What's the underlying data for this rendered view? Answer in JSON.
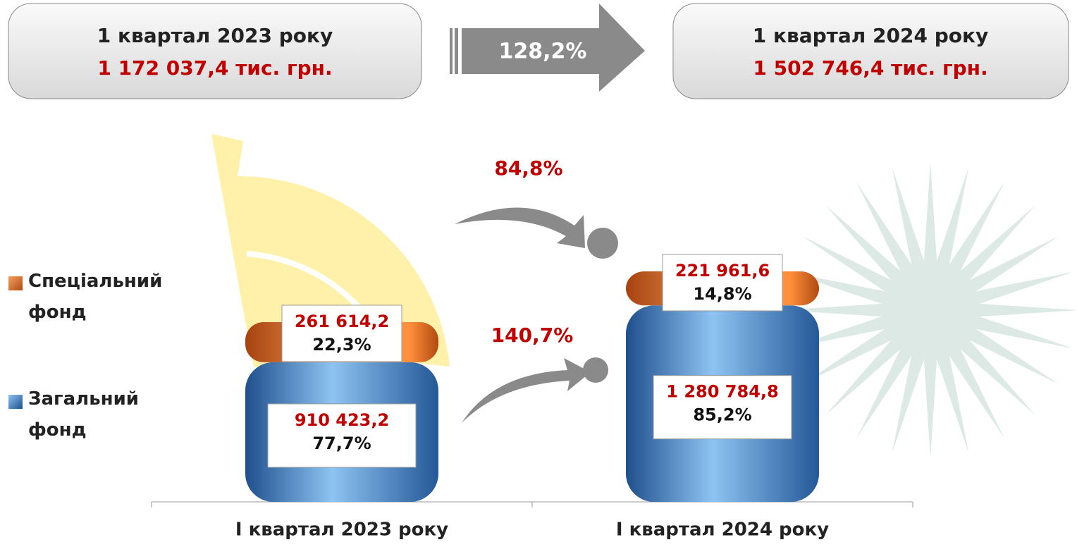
{
  "header": {
    "left": {
      "title": "1 квартал 2023 року",
      "amount": "1 172 037,4 тис. грн."
    },
    "growth": "128,2%",
    "right": {
      "title": "1 квартал 2024 року",
      "amount": "1 502 746,4 тис. грн."
    }
  },
  "chart_data": {
    "type": "stacked-bar",
    "categories": [
      "І квартал 2023 року",
      "І квартал 2024 року"
    ],
    "series": [
      {
        "name": "Загальний фонд",
        "color": "#3f7fc4",
        "values": [
          910423.2,
          1280784.8
        ],
        "value_labels": [
          "910 423,2",
          "1 280 784,8"
        ],
        "share_labels": [
          "77,7%",
          "85,2%"
        ]
      },
      {
        "name": "Спеціальний фонд",
        "color": "#e8732a",
        "values": [
          261614.2,
          221961.6
        ],
        "value_labels": [
          "261 614,2",
          "221 961,6"
        ],
        "share_labels": [
          "22,3%",
          "14,8%"
        ]
      }
    ],
    "annotations": [
      {
        "text": "84,8%",
        "series": 1
      },
      {
        "text": "140,7%",
        "series": 0
      }
    ]
  }
}
